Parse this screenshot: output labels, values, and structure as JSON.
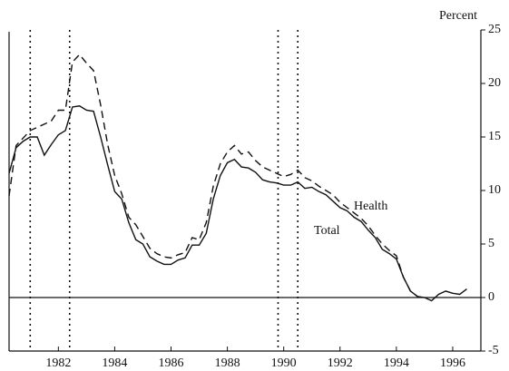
{
  "chart_data": {
    "type": "line",
    "axis_label": "Percent",
    "x": [
      1980.25,
      1980.5,
      1980.75,
      1981,
      1981.25,
      1981.5,
      1981.75,
      1982,
      1982.25,
      1982.5,
      1982.75,
      1983,
      1983.25,
      1983.5,
      1983.75,
      1984,
      1984.25,
      1984.5,
      1984.75,
      1985,
      1985.25,
      1985.5,
      1985.75,
      1986,
      1986.25,
      1986.5,
      1986.75,
      1987,
      1987.25,
      1987.5,
      1987.75,
      1988,
      1988.25,
      1988.5,
      1988.75,
      1989,
      1989.25,
      1989.5,
      1989.75,
      1990,
      1990.25,
      1990.5,
      1990.75,
      1991,
      1991.25,
      1991.5,
      1991.75,
      1992,
      1992.25,
      1992.5,
      1992.75,
      1993,
      1993.25,
      1993.5,
      1993.75,
      1994,
      1994.25,
      1994.5,
      1994.75,
      1995,
      1995.25,
      1995.5,
      1995.75,
      1996,
      1996.25,
      1996.5
    ],
    "series": [
      {
        "name": "Total",
        "color": "#111111",
        "style": "solid",
        "values": [
          11.6,
          14.0,
          14.6,
          15.0,
          15.0,
          13.3,
          14.3,
          15.2,
          15.6,
          17.8,
          17.9,
          17.5,
          17.4,
          15.0,
          12.4,
          9.9,
          9.2,
          7.0,
          5.4,
          5.0,
          3.8,
          3.4,
          3.1,
          3.1,
          3.5,
          3.7,
          4.9,
          4.9,
          6.0,
          9.2,
          11.4,
          12.6,
          12.9,
          12.2,
          12.1,
          11.7,
          11.0,
          10.8,
          10.7,
          10.5,
          10.5,
          10.8,
          10.2,
          10.3,
          9.9,
          9.6,
          9.0,
          8.4,
          8.1,
          7.5,
          7.1,
          6.3,
          5.6,
          4.5,
          4.1,
          3.6,
          1.9,
          0.6,
          0.1,
          0,
          -0.3,
          0.3,
          0.6,
          0.4,
          0.3,
          0.8
        ]
      },
      {
        "name": "Health",
        "color": "#111111",
        "style": "dashed",
        "values": [
          9.5,
          14.2,
          14.9,
          15.6,
          15.9,
          16.2,
          16.5,
          17.5,
          17.5,
          22.0,
          22.7,
          21.9,
          21.2,
          18.0,
          14.3,
          11.4,
          9.7,
          7.5,
          6.8,
          5.7,
          4.6,
          4.1,
          3.8,
          3.7,
          4.0,
          4.2,
          5.6,
          5.4,
          7.0,
          10.4,
          12.5,
          13.6,
          14.2,
          13.4,
          13.6,
          12.8,
          12.2,
          11.9,
          11.6,
          11.3,
          11.5,
          11.9,
          11.2,
          10.9,
          10.4,
          10.0,
          9.6,
          8.9,
          8.4,
          7.9,
          7.4,
          6.7,
          5.8,
          5.0,
          4.4,
          3.9,
          1.9,
          0.6,
          0.1,
          null,
          null,
          null,
          null,
          null,
          null,
          null
        ]
      }
    ],
    "vlines": [
      1981.0,
      1982.4,
      1989.8,
      1990.5
    ],
    "xlim": [
      1980.25,
      1997.0
    ],
    "xticks": [
      1982,
      1984,
      1986,
      1988,
      1990,
      1992,
      1994,
      1996
    ],
    "ylim": [
      -5,
      25
    ],
    "yticks": [
      -5,
      0,
      5,
      10,
      15,
      20,
      25
    ],
    "zero_line": true
  }
}
